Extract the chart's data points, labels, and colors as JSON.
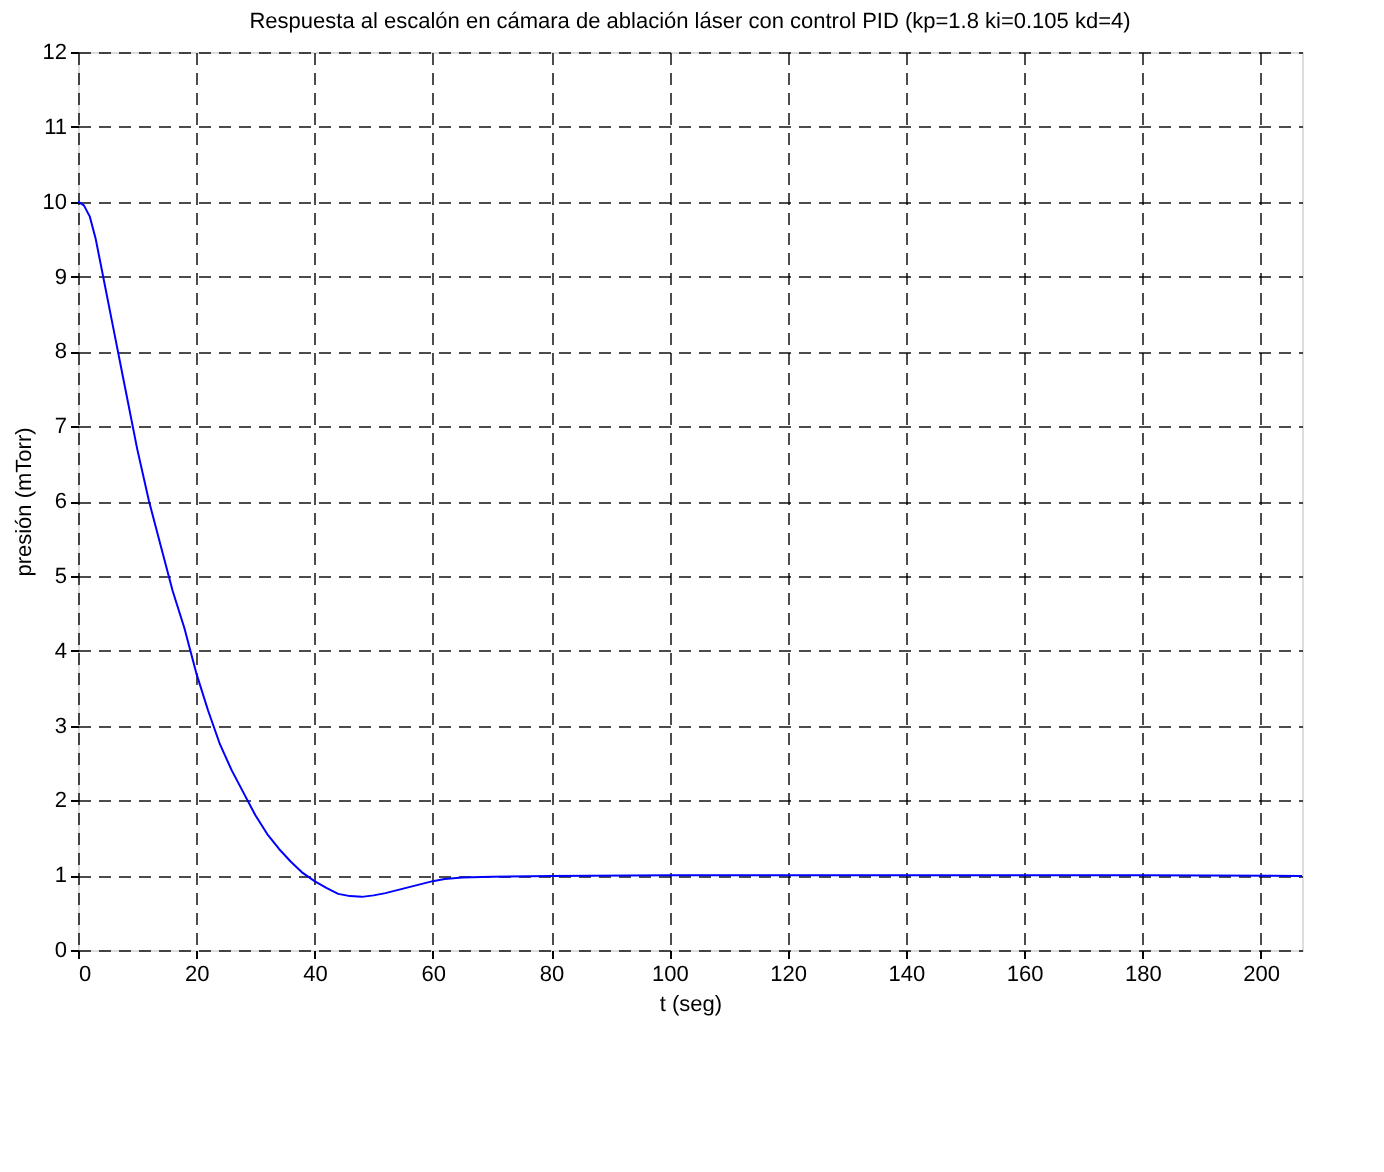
{
  "chart_data": {
    "type": "line",
    "title": "Respuesta al escalón en cámara de ablación láser con control PID (kp=1.8 ki=0.105 kd=4)",
    "xlabel": "t (seg)",
    "ylabel": "presión (mTorr)",
    "x": [
      0,
      1,
      2,
      3,
      4,
      6,
      8,
      10,
      12,
      14,
      16,
      18,
      20,
      22,
      24,
      26,
      28,
      30,
      32,
      34,
      36,
      38,
      40,
      42,
      44,
      46,
      48,
      50,
      52,
      55,
      58,
      60,
      62,
      65,
      70,
      80,
      100,
      120,
      150,
      180,
      207
    ],
    "series": [
      {
        "color": "#0000ff",
        "values": [
          10,
          9.95,
          9.8,
          9.5,
          9.1,
          8.3,
          7.5,
          6.7,
          6.0,
          5.4,
          4.8,
          4.3,
          3.7,
          3.2,
          2.75,
          2.4,
          2.1,
          1.8,
          1.55,
          1.35,
          1.18,
          1.03,
          0.92,
          0.83,
          0.75,
          0.72,
          0.71,
          0.73,
          0.76,
          0.82,
          0.88,
          0.92,
          0.95,
          0.97,
          0.98,
          0.99,
          1.0,
          1.0,
          1.0,
          1.0,
          0.99
        ]
      }
    ],
    "xlim": [
      0,
      207
    ],
    "xticks": [
      0,
      20,
      40,
      60,
      80,
      100,
      120,
      140,
      160,
      180,
      200
    ],
    "ylim": [
      0,
      12
    ],
    "yticks": [
      0,
      1,
      2,
      3,
      4,
      5,
      6,
      7,
      8,
      9,
      10,
      11,
      12
    ],
    "grid": true,
    "legend": false,
    "marker": "none",
    "line_style": "solid"
  }
}
